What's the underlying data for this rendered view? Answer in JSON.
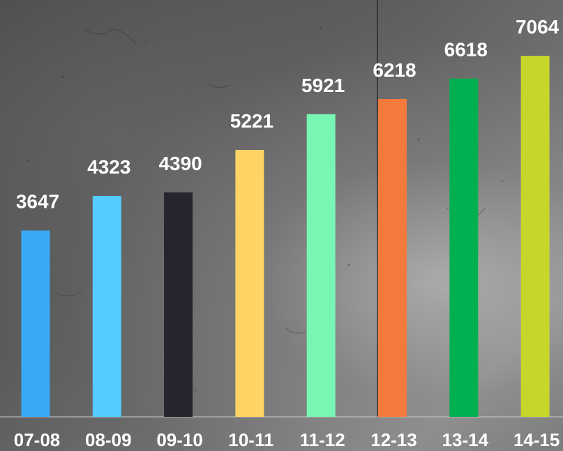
{
  "chart_data": {
    "type": "bar",
    "categories": [
      "07-08",
      "08-09",
      "09-10",
      "10-11",
      "11-12",
      "12-13",
      "13-14",
      "14-15"
    ],
    "values": [
      3647,
      4323,
      4390,
      5221,
      5921,
      6218,
      6618,
      7064
    ],
    "ylim": [
      0,
      8000
    ],
    "grid": false,
    "legend": "none",
    "colors": [
      "#3aa8f5",
      "#55ccff",
      "#25252e",
      "#ffd465",
      "#78f7b4",
      "#f37a3c",
      "#00b050",
      "#c8d52a"
    ],
    "title": "",
    "xlabel": "",
    "ylabel": ""
  }
}
